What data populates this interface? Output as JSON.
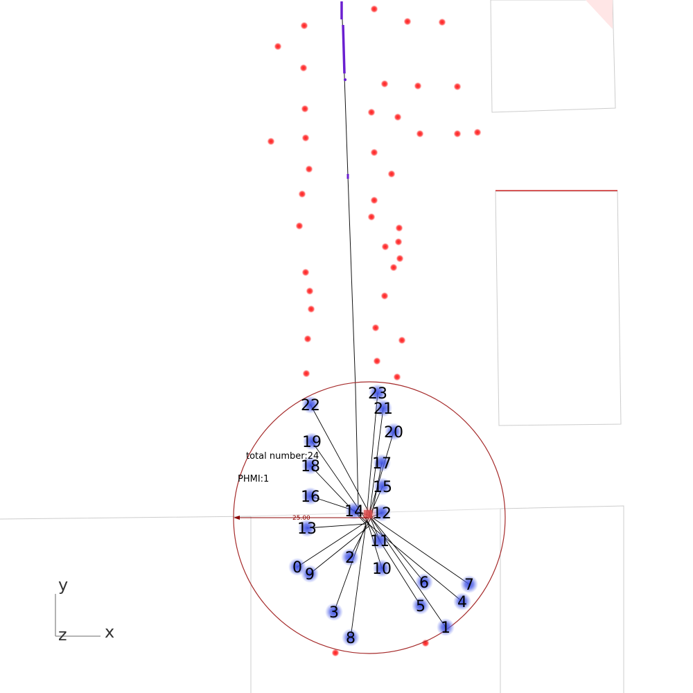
{
  "hud": {
    "total_number_text": "total number:24",
    "phmi_text": "PHMI:1",
    "scale_text": "25.00"
  },
  "axes": {
    "y": "y",
    "z": "z",
    "x": "x"
  },
  "colors": {
    "background": "#ffffff",
    "circle": "#a52a2a",
    "arrow": "#8b0000",
    "landmark": "#ff2020",
    "satellite_glow": "#3b4fe0",
    "trajectory": "#6a1fd0",
    "ray": "#000000",
    "building": "#cccccc"
  },
  "satellites": [
    {
      "id": "0",
      "label": "0"
    },
    {
      "id": "1",
      "label": "1"
    },
    {
      "id": "2",
      "label": "2"
    },
    {
      "id": "3",
      "label": "3"
    },
    {
      "id": "4",
      "label": "4"
    },
    {
      "id": "5",
      "label": "5"
    },
    {
      "id": "6",
      "label": "6"
    },
    {
      "id": "7",
      "label": "7"
    },
    {
      "id": "8",
      "label": "8"
    },
    {
      "id": "9",
      "label": "9"
    },
    {
      "id": "10",
      "label": "10"
    },
    {
      "id": "11",
      "label": "11"
    },
    {
      "id": "12",
      "label": "12"
    },
    {
      "id": "13",
      "label": "13"
    },
    {
      "id": "14",
      "label": "14"
    },
    {
      "id": "15",
      "label": "15"
    },
    {
      "id": "16",
      "label": "16"
    },
    {
      "id": "17",
      "label": "17"
    },
    {
      "id": "18",
      "label": "18"
    },
    {
      "id": "19",
      "label": "19"
    },
    {
      "id": "20",
      "label": "20"
    },
    {
      "id": "21",
      "label": "21"
    },
    {
      "id": "22",
      "label": "22"
    },
    {
      "id": "23",
      "label": "23"
    }
  ]
}
